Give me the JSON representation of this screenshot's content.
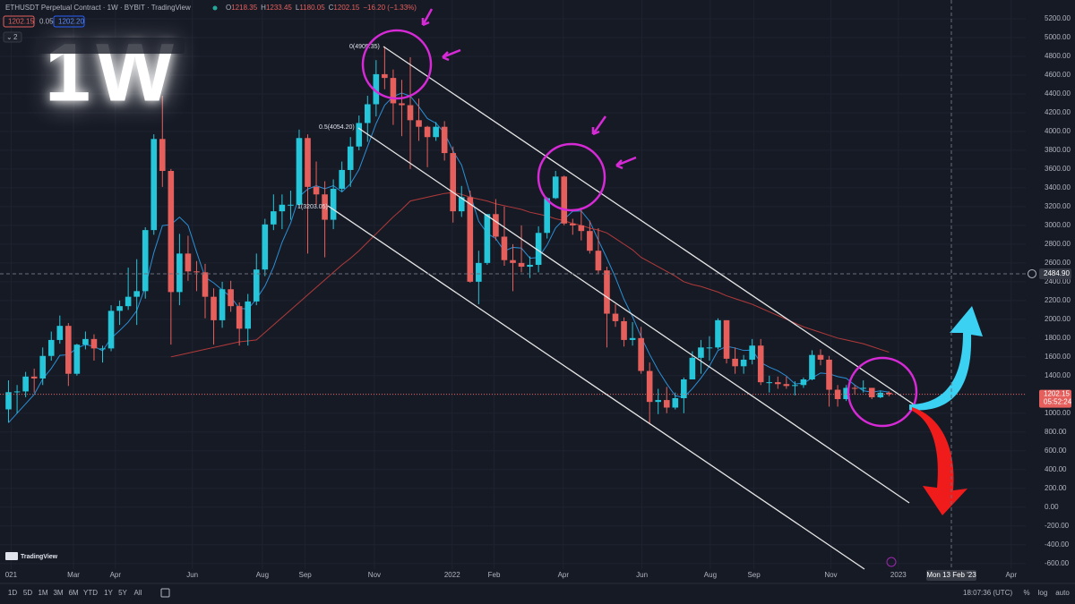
{
  "chart_data": {
    "type": "candlestick",
    "open": [
      1041,
      1224,
      1232,
      1390,
      1370,
      1610,
      1780,
      1930,
      1420,
      1730,
      1790,
      1690,
      1690,
      2090,
      2140,
      2240,
      2300,
      2950,
      3920,
      3580,
      2290,
      2700,
      2510,
      2500,
      2240,
      1990,
      2320,
      2140,
      1900,
      2190,
      2530,
      3010,
      3150,
      3220,
      3220,
      3930,
      3410,
      3330,
      3060,
      3390,
      3590,
      3840,
      4090,
      4290,
      4610,
      4570,
      4300,
      4280,
      4120,
      4050,
      3940,
      4050,
      3770,
      3150,
      3300,
      2400,
      2600,
      3120,
      2880,
      2630,
      2600,
      2560,
      2580,
      2920,
      3290,
      3520,
      3020,
      3000,
      2940,
      2730,
      2520,
      2060,
      1980,
      1780,
      1800,
      1450,
      1120,
      1140,
      1060,
      1160,
      1360,
      1590,
      1700,
      1700,
      1990,
      1580,
      1500,
      1570,
      1720,
      1330,
      1330,
      1310,
      1290,
      1300,
      1360,
      1620,
      1570,
      1250,
      1150,
      1270,
      1260,
      1270,
      1170,
      1218.35
    ],
    "high": [
      1350,
      1300,
      1440,
      1475,
      1700,
      1870,
      2040,
      1960,
      1740,
      1870,
      1840,
      1720,
      2150,
      2200,
      2550,
      2640,
      2980,
      3970,
      4380,
      3600,
      2910,
      2890,
      2620,
      2590,
      2330,
      2400,
      2410,
      2180,
      2270,
      2700,
      3070,
      3330,
      3330,
      3370,
      4020,
      3970,
      3680,
      3470,
      3490,
      3680,
      3940,
      4170,
      4380,
      4760,
      4905.35,
      4660,
      4550,
      4790,
      4350,
      4060,
      4100,
      4110,
      3840,
      3420,
      3370,
      2730,
      3120,
      3280,
      3200,
      2800,
      3000,
      2670,
      2990,
      3300,
      3580,
      3530,
      3070,
      3190,
      3050,
      2970,
      2560,
      2160,
      2020,
      1970,
      1920,
      1540,
      1260,
      1280,
      1220,
      1380,
      1660,
      1780,
      1820,
      2010,
      1990,
      1700,
      1620,
      1790,
      1790,
      1400,
      1390,
      1390,
      1340,
      1380,
      1670,
      1680,
      1610,
      1300,
      1300,
      1300,
      1350,
      1270,
      1240,
      1233.45
    ],
    "low": [
      900,
      1000,
      1170,
      1220,
      1300,
      1560,
      1740,
      1290,
      1400,
      1680,
      1560,
      1540,
      1660,
      1940,
      2100,
      1940,
      2220,
      2900,
      3410,
      1730,
      2150,
      2410,
      2300,
      2010,
      1730,
      1910,
      2080,
      1720,
      1720,
      2150,
      2460,
      2950,
      2960,
      3060,
      3190,
      2700,
      3220,
      2660,
      2960,
      3360,
      3410,
      3800,
      3890,
      4160,
      4450,
      4070,
      3950,
      3600,
      3900,
      3620,
      3900,
      3690,
      3030,
      3090,
      2390,
      2160,
      2580,
      2840,
      2570,
      2300,
      2500,
      2440,
      2500,
      2860,
      3280,
      3000,
      2900,
      2840,
      2700,
      2490,
      1700,
      1920,
      1710,
      1720,
      1420,
      880,
      990,
      1000,
      1040,
      1000,
      1360,
      1420,
      1560,
      1680,
      1530,
      1420,
      1420,
      1520,
      1300,
      1220,
      1260,
      1260,
      1190,
      1270,
      1350,
      1510,
      1070,
      1070,
      1130,
      1200,
      1220,
      1150,
      1160,
      1180.05
    ],
    "close": [
      1224,
      1232,
      1390,
      1370,
      1610,
      1780,
      1930,
      1420,
      1730,
      1790,
      1690,
      1690,
      2090,
      2140,
      2240,
      2300,
      2950,
      3920,
      3580,
      2290,
      2700,
      2510,
      2500,
      2240,
      1990,
      2320,
      2140,
      1900,
      2190,
      2530,
      3010,
      3150,
      3220,
      3220,
      3930,
      3410,
      3330,
      3060,
      3390,
      3590,
      3840,
      4090,
      4290,
      4610,
      4570,
      4300,
      4280,
      4120,
      4050,
      3940,
      4050,
      3770,
      3150,
      3300,
      2400,
      2600,
      3120,
      2880,
      2630,
      2600,
      2560,
      2580,
      2920,
      3290,
      3520,
      3020,
      3000,
      2940,
      2730,
      2520,
      2060,
      1980,
      1780,
      1800,
      1450,
      1120,
      1140,
      1060,
      1160,
      1360,
      1590,
      1700,
      1700,
      1990,
      1580,
      1500,
      1570,
      1720,
      1330,
      1330,
      1310,
      1290,
      1300,
      1360,
      1620,
      1570,
      1250,
      1150,
      1270,
      1260,
      1270,
      1170,
      1218.35,
      1202.15
    ],
    "up_color": "#26c6da",
    "down_color": "#e5605c",
    "lines": [
      {
        "color": "#2a8fd6",
        "values": [
          900,
          1000,
          1100,
          1200,
          1365,
          1476,
          1616,
          1622,
          1694,
          1730,
          1712,
          1664,
          1798,
          1880,
          1970,
          2092,
          2344,
          2710,
          2998,
          3008,
          3088,
          3000,
          2716,
          2448,
          2388,
          2312,
          2238,
          2118,
          2108,
          2216,
          2354,
          2556,
          2820,
          3026,
          3306,
          3386,
          3422,
          3390,
          3424,
          3356,
          3442,
          3594,
          3840,
          4084,
          4280,
          4372,
          4410,
          4376,
          4264,
          4138,
          4088,
          3986,
          3792,
          3642,
          3334,
          3044,
          2914,
          2860,
          2726,
          2766,
          2758,
          2650,
          2658,
          2790,
          2974,
          3066,
          3150,
          3154,
          3042,
          2842,
          2650,
          2446,
          2214,
          2028,
          1814,
          1626,
          1458,
          1314,
          1186,
          1168,
          1262,
          1374,
          1502,
          1668,
          1712,
          1694,
          1668,
          1672,
          1540,
          1490,
          1452,
          1396,
          1312,
          1318,
          1376,
          1428,
          1420,
          1390,
          1372,
          1300,
          1240,
          1224,
          1238,
          1224
        ]
      },
      {
        "color": "#b23a3a",
        "values": [
          null,
          null,
          null,
          null,
          null,
          null,
          null,
          null,
          null,
          null,
          null,
          null,
          null,
          null,
          null,
          null,
          null,
          null,
          null,
          1600,
          1620,
          1640,
          1660,
          1680,
          1700,
          1720,
          1740,
          1760,
          1770,
          1780,
          1860,
          1940,
          2020,
          2100,
          2180,
          2260,
          2340,
          2420,
          2500,
          2580,
          2650,
          2730,
          2820,
          2910,
          3000,
          3090,
          3170,
          3260,
          3280,
          3300,
          3320,
          3340,
          3350,
          3330,
          3300,
          3280,
          3260,
          3230,
          3210,
          3190,
          3170,
          3140,
          3120,
          3100,
          3070,
          3050,
          3020,
          3000,
          2970,
          2950,
          2920,
          2860,
          2800,
          2740,
          2660,
          2610,
          2560,
          2510,
          2460,
          2400,
          2370,
          2350,
          2320,
          2290,
          2250,
          2220,
          2190,
          2160,
          2120,
          2080,
          2040,
          2000,
          1960,
          1920,
          1890,
          1860,
          1830,
          1800,
          1780,
          1760,
          1740,
          1710,
          1680,
          1650
        ]
      }
    ],
    "ylim": [
      -660,
      5400
    ],
    "yticks": [
      {
        "value": -600,
        "label": "-600.00"
      },
      {
        "value": -400,
        "label": "-400.00"
      },
      {
        "value": -200,
        "label": "-200.00"
      },
      {
        "value": 0,
        "label": "0.00"
      },
      {
        "value": 200,
        "label": "200.00"
      },
      {
        "value": 400,
        "label": "400.00"
      },
      {
        "value": 600,
        "label": "600.00"
      },
      {
        "value": 800,
        "label": "800.00"
      },
      {
        "value": 1000,
        "label": "1000.00"
      },
      {
        "value": 1200,
        "label": "1200.00"
      },
      {
        "value": 1400,
        "label": "1400.00"
      },
      {
        "value": 1600,
        "label": "1600.00"
      },
      {
        "value": 1800,
        "label": "1800.00"
      },
      {
        "value": 2000,
        "label": "2000.00"
      },
      {
        "value": 2200,
        "label": "2200.00"
      },
      {
        "value": 2400,
        "label": "2400.00"
      },
      {
        "value": 2600,
        "label": "2600.00"
      },
      {
        "value": 2800,
        "label": "2800.00"
      },
      {
        "value": 3000,
        "label": "3000.00"
      },
      {
        "value": 3200,
        "label": "3200.00"
      },
      {
        "value": 3400,
        "label": "3400.00"
      },
      {
        "value": 3600,
        "label": "3600.00"
      },
      {
        "value": 3800,
        "label": "3800.00"
      },
      {
        "value": 4000,
        "label": "4000.00"
      },
      {
        "value": 4200,
        "label": "4200.00"
      },
      {
        "value": 4400,
        "label": "4400.00"
      },
      {
        "value": 4600,
        "label": "4600.00"
      },
      {
        "value": 4800,
        "label": "4800.00"
      },
      {
        "value": 5000,
        "label": "5000.00"
      },
      {
        "value": 5200,
        "label": "5200.00"
      }
    ],
    "xlim": [
      -1,
      119
    ],
    "xticks": [
      {
        "value": 0.3,
        "label": "021"
      },
      {
        "value": 7.6,
        "label": "Mar"
      },
      {
        "value": 12.5,
        "label": "Apr"
      },
      {
        "value": 21.5,
        "label": "Jun"
      },
      {
        "value": 29.7,
        "label": "Aug"
      },
      {
        "value": 34.7,
        "label": "Sep"
      },
      {
        "value": 42.8,
        "label": "Nov"
      },
      {
        "value": 51.9,
        "label": "2022"
      },
      {
        "value": 56.8,
        "label": "Feb"
      },
      {
        "value": 64.9,
        "label": "Apr"
      },
      {
        "value": 74.1,
        "label": "Jun"
      },
      {
        "value": 82.1,
        "label": "Aug"
      },
      {
        "value": 87.2,
        "label": "Sep"
      },
      {
        "value": 96.2,
        "label": "Nov"
      },
      {
        "value": 104.1,
        "label": "2023"
      },
      {
        "value": 117.3,
        "label": "Apr"
      }
    ],
    "grid": true,
    "price_marker": {
      "value": 1202.15,
      "label": "1202.15",
      "countdown": "05:52:24",
      "color": "#e5605c"
    },
    "crosshair": {
      "y": {
        "value": 2484.9,
        "label": "2484.90"
      },
      "x": {
        "value": 110.3,
        "label": "Mon 13 Feb '23"
      }
    },
    "annotations": [
      "0(4905.35)",
      "0.5(4054.20)",
      "1(3203.05)"
    ]
  },
  "ui": {
    "symbol": "ETHUSDT Perpetual Contract · 1W · BYBIT · TradingView",
    "ohlc": [
      {
        "key": "O",
        "value": "1218.35"
      },
      {
        "key": "H",
        "value": "1233.45"
      },
      {
        "key": "L",
        "value": "1180.05"
      },
      {
        "key": "C",
        "value": "1202.15"
      }
    ],
    "change": "−16.20 (−1.33%)",
    "bid": "1202.15",
    "spread": "0.05",
    "ask": "1202.20",
    "indicator_count": "2",
    "big_label": "1W",
    "logo": "TradingView",
    "timeframes": [
      "1D",
      "5D",
      "1M",
      "3M",
      "6M",
      "YTD",
      "1Y",
      "5Y",
      "All"
    ],
    "clock": "18:07:36 (UTC)",
    "scale_buttons": [
      "%",
      "log",
      "auto"
    ]
  }
}
